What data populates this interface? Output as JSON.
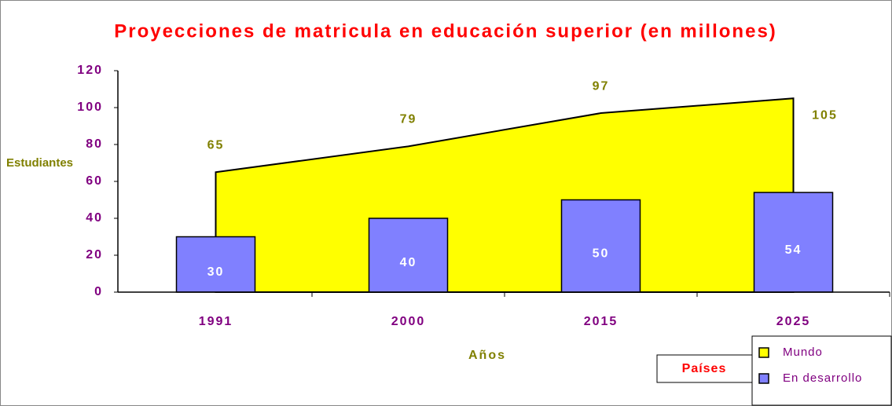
{
  "chart_data": {
    "type": "combo",
    "title": "Proyecciones de matricula en educación superior (en millones)",
    "y_label": "Estudiantes",
    "x_label": "Años",
    "categories": [
      "1991",
      "2000",
      "2015",
      "2025"
    ],
    "series": [
      {
        "name": "Mundo",
        "type": "area",
        "color": "#ffff00",
        "values": [
          65,
          79,
          97,
          105
        ]
      },
      {
        "name": "En desarrollo",
        "type": "bar",
        "color": "#8080ff",
        "values": [
          30,
          40,
          50,
          54
        ]
      }
    ],
    "ylim": [
      0,
      120
    ],
    "yticks": [
      0,
      20,
      40,
      60,
      80,
      100,
      120
    ],
    "legend_title": "Países",
    "legend": "bottom-right"
  }
}
